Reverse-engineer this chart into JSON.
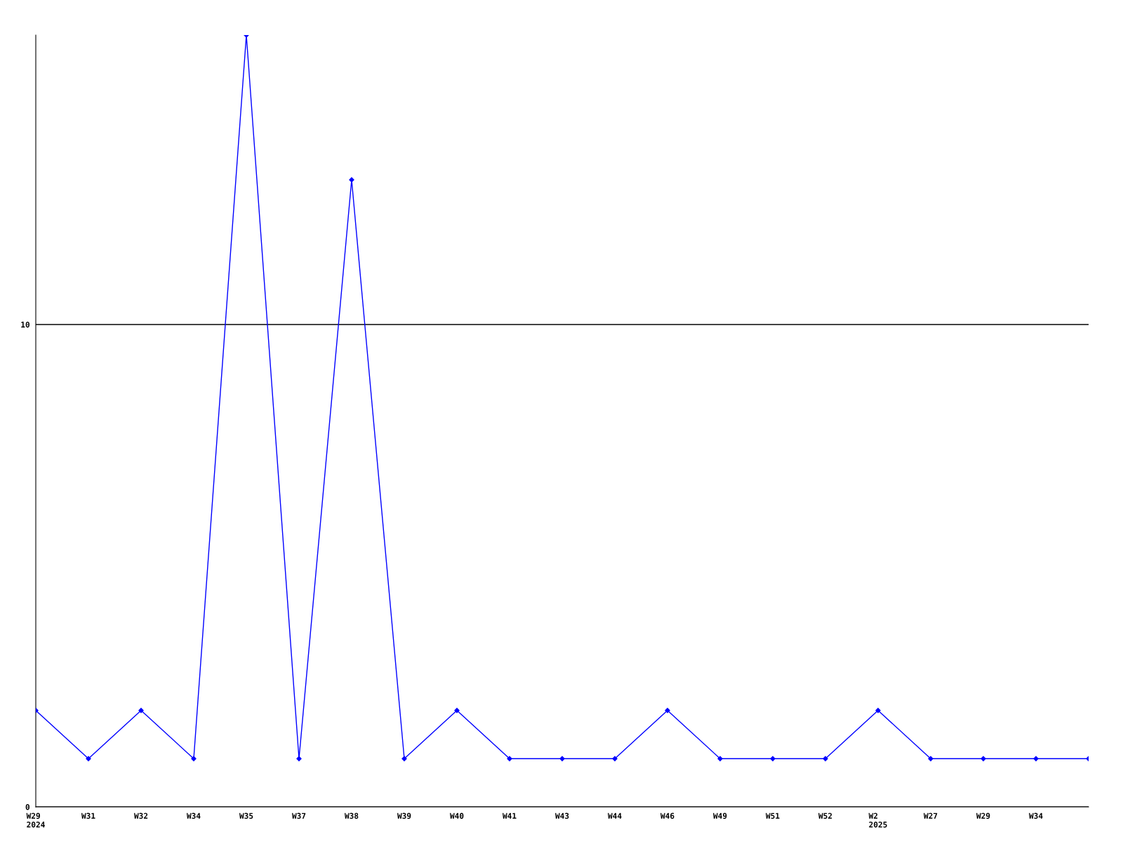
{
  "chart_data": {
    "type": "line",
    "categories": [
      "W29\n2024",
      "W31",
      "W32",
      "W34",
      "W35",
      "W37",
      "W38",
      "W39",
      "W40",
      "W41",
      "W43",
      "W44",
      "W46",
      "W49",
      "W51",
      "W52",
      "W2\n2025",
      "W27",
      "W29",
      "W34",
      null
    ],
    "series": [
      {
        "color": "#0000ff",
        "values": [
          2,
          1,
          2,
          1,
          16,
          1,
          13,
          1,
          2,
          1,
          1,
          1,
          2,
          1,
          1,
          1,
          2,
          1,
          1,
          1,
          1
        ]
      }
    ],
    "ylim": [
      0,
      16
    ],
    "yticks": [
      0,
      10
    ],
    "grid": "y",
    "marker": "diamond",
    "line_style": "solid"
  }
}
